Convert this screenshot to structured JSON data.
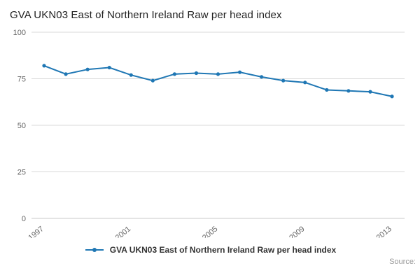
{
  "title": "GVA UKN03 East of Northern Ireland Raw per head index",
  "legend": {
    "label": "GVA UKN03 East of Northern Ireland Raw per head index"
  },
  "source": {
    "label": "Source:"
  },
  "colors": {
    "line": "#1f77b4",
    "grid": "#d9d9d9",
    "axis": "#c9c9c9",
    "tick_text": "#666666"
  },
  "chart_data": {
    "type": "line",
    "title": "GVA UKN03 East of Northern Ireland Raw per head index",
    "x": [
      1997,
      1998,
      1999,
      2000,
      2001,
      2002,
      2003,
      2004,
      2005,
      2006,
      2007,
      2008,
      2009,
      2010,
      2011,
      2012,
      2013
    ],
    "series": [
      {
        "name": "GVA UKN03 East of Northern Ireland Raw per head index",
        "values": [
          82,
          77.5,
          80,
          81,
          77,
          74,
          77.5,
          78,
          77.5,
          78.5,
          76,
          74,
          73,
          69,
          68.5,
          68,
          65.5
        ]
      }
    ],
    "ylim": [
      0,
      100
    ],
    "yticks": [
      0,
      25,
      50,
      75,
      100
    ],
    "xticks": [
      1997,
      2001,
      2005,
      2009,
      2013
    ],
    "xlabel": "",
    "ylabel": "",
    "grid": "horizontal",
    "legend_position": "bottom",
    "marker": "circle"
  }
}
